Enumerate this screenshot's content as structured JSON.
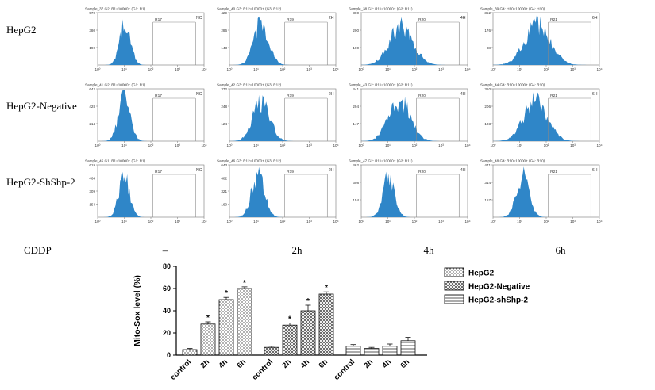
{
  "colors": {
    "histogram_fill": "#2f86c8",
    "axis": "#777777",
    "bar_stroke": "#111111"
  },
  "flow": {
    "x_ticks": [
      "10⁰",
      "10¹",
      "10²",
      "10³",
      "10⁴"
    ],
    "rows": [
      {
        "label": "HepG2",
        "panels": [
          {
            "title": "Sample_37 G2: R1=10000+ (G1: R1)",
            "yticks": [
              570,
              380,
              190
            ],
            "gate": "R17",
            "condition": "NC",
            "peak": {
              "c": 0.26,
              "w": 0.05,
              "h": 0.85
            }
          },
          {
            "title": "Sample_40 G3: R12=10000+ (G3: R12)",
            "yticks": [
              429,
              286,
              143
            ],
            "gate": "R19",
            "condition": "2H",
            "peak": {
              "c": 0.3,
              "w": 0.07,
              "h": 0.8
            }
          },
          {
            "title": "Sample_38 G2: R11=10000+ (G2: R11)",
            "yticks": [
              300,
              200,
              100
            ],
            "gate": "R20",
            "condition": "4H",
            "peak": {
              "c": 0.38,
              "w": 0.11,
              "h": 0.75
            }
          },
          {
            "title": "Sample_39 G4: H10=10000+ (G4: H10)",
            "yticks": [
              352,
              176,
              88
            ],
            "gate": "R21",
            "condition": "6H",
            "peak": {
              "c": 0.42,
              "w": 0.12,
              "h": 0.78
            }
          }
        ]
      },
      {
        "label": "HepG2-Negative",
        "panels": [
          {
            "title": "Sample_41 G2: R1=10000+ (G1: R1)",
            "yticks": [
              642,
              428,
              214
            ],
            "gate": "R17",
            "condition": "NC",
            "peak": {
              "c": 0.25,
              "w": 0.055,
              "h": 0.85
            }
          },
          {
            "title": "Sample_42 G3: R12=10000+ (G3: R12)",
            "yticks": [
              372,
              248,
              124
            ],
            "gate": "R19",
            "condition": "2H",
            "peak": {
              "c": 0.3,
              "w": 0.08,
              "h": 0.78
            }
          },
          {
            "title": "Sample_43 G2: R11=10000+ (G2: R11)",
            "yticks": [
              441,
              294,
              147
            ],
            "gate": "R20",
            "condition": "4H",
            "peak": {
              "c": 0.36,
              "w": 0.1,
              "h": 0.8
            }
          },
          {
            "title": "Sample_44 G4: R10=10000+ (G4: R10)",
            "yticks": [
              310,
              206,
              103
            ],
            "gate": "R21",
            "condition": "6H",
            "peak": {
              "c": 0.4,
              "w": 0.11,
              "h": 0.8
            }
          }
        ]
      },
      {
        "label": "HepG2-ShShp-2",
        "panels": [
          {
            "title": "Sample_45 G1: R1=10000+ (G1: R1)",
            "yticks": [
              619,
              464,
              309,
              154
            ],
            "gate": "R17",
            "condition": "NC",
            "peak": {
              "c": 0.25,
              "w": 0.05,
              "h": 0.82
            }
          },
          {
            "title": "Sample_46 G3: R12=10000+ (G3: R12)",
            "yticks": [
              643,
              482,
              321,
              160
            ],
            "gate": "R19",
            "condition": "2H",
            "peak": {
              "c": 0.27,
              "w": 0.06,
              "h": 0.85
            }
          },
          {
            "title": "Sample_47 G2: R11=10000+ (G2: R11)",
            "yticks": [
              462,
              308,
              154
            ],
            "gate": "R20",
            "condition": "4H",
            "peak": {
              "c": 0.26,
              "w": 0.055,
              "h": 0.8
            }
          },
          {
            "title": "Sample_48 G4: R10=10000+ (G4: R10)",
            "yticks": [
              471,
              314,
              157
            ],
            "gate": "R21",
            "condition": "6H",
            "peak": {
              "c": 0.28,
              "w": 0.06,
              "h": 0.82
            }
          }
        ]
      }
    ]
  },
  "cddp": {
    "label": "CDDP",
    "timepoints": [
      "–",
      "2h",
      "4h",
      "6h"
    ]
  },
  "chart_data": {
    "type": "bar",
    "title": "",
    "ylabel": "Mito-Sox level (%)",
    "ylim": [
      0,
      80
    ],
    "yticks": [
      0,
      20,
      40,
      60,
      80
    ],
    "group_categories": [
      "control",
      "2h",
      "4h",
      "6h"
    ],
    "series": [
      {
        "name": "HepG2",
        "pattern": "stipple",
        "values": [
          5,
          28,
          50,
          60
        ],
        "errors": [
          1,
          2,
          2,
          1.5
        ],
        "sig": [
          "",
          "*",
          "*",
          "*"
        ]
      },
      {
        "name": "HepG2-Negative",
        "pattern": "crosshatch",
        "values": [
          7,
          27,
          40,
          55
        ],
        "errors": [
          1,
          2,
          5,
          2
        ],
        "sig": [
          "",
          "*",
          "*",
          "*"
        ]
      },
      {
        "name": "HepG2-shShp-2",
        "pattern": "hlines",
        "values": [
          8,
          6,
          8,
          13
        ],
        "errors": [
          1.5,
          1,
          2,
          3
        ],
        "sig": [
          "",
          "",
          "",
          ""
        ]
      }
    ],
    "legend": [
      "HepG2",
      "HepG2-Negative",
      "HepG2-shShp-2"
    ],
    "legend_position": "top-right",
    "grid": false
  }
}
